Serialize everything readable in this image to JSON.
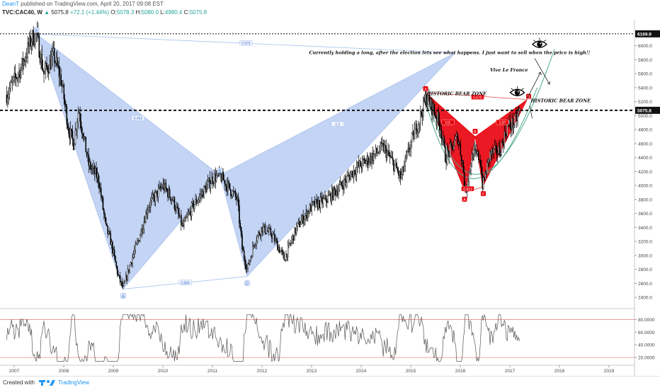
{
  "header": {
    "author": "DeanT",
    "published": "published on TradingView.com, April 20, 2017 09:08 EST",
    "symbol": "TVC:CAC40, W",
    "last": "5075.8",
    "change": "+72.1 (+1.44%)",
    "open_label": "O:",
    "open": "5078.3",
    "high_label": "H:",
    "high": "5080.0",
    "low_label": "L:",
    "low": "4980.4",
    "close_label": "C:",
    "close": "5075.8"
  },
  "footer": {
    "created_with": "Created with",
    "brand": "TradingView"
  },
  "colors": {
    "blue_pattern": "#b9cdf2",
    "red_pattern": "#e8000b",
    "candle": "#000000",
    "rsi_line": "#555555",
    "accent": "#2196f3",
    "green_arc": "#4fa88c"
  },
  "chart_data": [
    {
      "type": "candlestick",
      "interval": "W",
      "ylim": [
        2250,
        6350
      ],
      "y_ticks": [
        2400,
        2600,
        2800,
        3000,
        3200,
        3400,
        3600,
        3800,
        4000,
        4200,
        4400,
        4600,
        4800,
        5000,
        5200,
        5400,
        5600,
        5800,
        6000
      ],
      "y_tick_labels": [
        "2400.0",
        "2600.0",
        "2800.0",
        "3000.0",
        "3200.0",
        "3400.0",
        "3600.0",
        "3800.0",
        "4000.0",
        "4200.0",
        "4400.0",
        "4600.0",
        "4800.0",
        "5000.0",
        "5200.0",
        "5400.0",
        "5600.0",
        "5800.0",
        "6000.0"
      ],
      "x_ticks": [
        2007,
        2008,
        2009,
        2010,
        2011,
        2012,
        2013,
        2014,
        2015,
        2016,
        2017,
        2018,
        2019
      ],
      "x_tick_labels": [
        "2007",
        "2008",
        "2009",
        "2010",
        "2011",
        "2012",
        "2013",
        "2014",
        "2015",
        "2016",
        "2017",
        "2018",
        "2019"
      ],
      "xlim": [
        2006.85,
        2019.3
      ],
      "path": [
        [
          2006.85,
          5300
        ],
        [
          2007.0,
          5500
        ],
        [
          2007.15,
          5700
        ],
        [
          2007.35,
          6100
        ],
        [
          2007.45,
          6168
        ],
        [
          2007.6,
          5600
        ],
        [
          2007.8,
          5850
        ],
        [
          2007.95,
          5500
        ],
        [
          2008.1,
          4800
        ],
        [
          2008.2,
          4600
        ],
        [
          2008.3,
          5100
        ],
        [
          2008.5,
          4300
        ],
        [
          2008.7,
          4100
        ],
        [
          2008.85,
          3400
        ],
        [
          2008.95,
          3200
        ],
        [
          2009.1,
          2700
        ],
        [
          2009.2,
          2519
        ],
        [
          2009.35,
          2900
        ],
        [
          2009.5,
          3200
        ],
        [
          2009.7,
          3700
        ],
        [
          2009.9,
          3900
        ],
        [
          2010.0,
          4000
        ],
        [
          2010.2,
          3800
        ],
        [
          2010.4,
          3400
        ],
        [
          2010.6,
          3700
        ],
        [
          2010.8,
          3900
        ],
        [
          2011.0,
          4100
        ],
        [
          2011.15,
          4150
        ],
        [
          2011.3,
          4000
        ],
        [
          2011.5,
          3800
        ],
        [
          2011.6,
          3100
        ],
        [
          2011.7,
          2800
        ],
        [
          2011.85,
          3200
        ],
        [
          2012.0,
          3400
        ],
        [
          2012.2,
          3300
        ],
        [
          2012.45,
          2950
        ],
        [
          2012.7,
          3400
        ],
        [
          2013.0,
          3700
        ],
        [
          2013.3,
          3800
        ],
        [
          2013.6,
          4000
        ],
        [
          2013.9,
          4250
        ],
        [
          2014.2,
          4400
        ],
        [
          2014.45,
          4550
        ],
        [
          2014.7,
          4250
        ],
        [
          2014.8,
          4100
        ],
        [
          2014.9,
          4350
        ],
        [
          2015.0,
          4600
        ],
        [
          2015.2,
          5000
        ],
        [
          2015.3,
          5250
        ],
        [
          2015.45,
          5100
        ],
        [
          2015.6,
          4850
        ],
        [
          2015.7,
          4400
        ],
        [
          2015.8,
          4500
        ],
        [
          2015.95,
          4700
        ],
        [
          2016.05,
          4300
        ],
        [
          2016.1,
          3900
        ],
        [
          2016.25,
          4450
        ],
        [
          2016.4,
          4400
        ],
        [
          2016.45,
          3980
        ],
        [
          2016.6,
          4450
        ],
        [
          2016.8,
          4500
        ],
        [
          2016.95,
          4850
        ],
        [
          2017.1,
          4900
        ],
        [
          2017.2,
          5075.8
        ]
      ],
      "price_label": "5075.8",
      "resistance_label": "6169.9",
      "resistance_level": 6169.9,
      "current_level": 5075.8,
      "blue_pattern": {
        "points": {
          "X": [
            2007.45,
            6168
          ],
          "A": [
            2009.2,
            2519
          ],
          "B": [
            2011.15,
            4150
          ],
          "C": [
            2011.7,
            2700
          ],
          "D": [
            2015.9,
            5900
          ]
        },
        "letters": [
          "X",
          "A",
          "B",
          "C"
        ],
        "ratios": [
          "0.975",
          "0.455",
          "0.886",
          "2.2"
        ]
      },
      "red_pattern": {
        "points": {
          "X": [
            2015.3,
            5330
          ],
          "A": [
            2016.1,
            3900
          ],
          "B": [
            2016.3,
            4700
          ],
          "C": [
            2016.45,
            3980
          ],
          "D": [
            2017.35,
            5230
          ]
        },
        "letters": [
          "X",
          "A",
          "B",
          "C",
          "D"
        ],
        "ratios": [
          "0.575",
          "0.5",
          "0.913",
          "1.97"
        ]
      },
      "annotations": {
        "holding": "Currently holding a long, after the election lets see what happens. I just want to sell when the price is high!!",
        "vive": "Vive Le France",
        "bear1": "HISTORIC BEAR ZONE",
        "bear2": "HISTORIC BEAR ZONE"
      }
    },
    {
      "type": "line",
      "indicator": "RSI",
      "ylim": [
        10,
        95
      ],
      "y_ticks": [
        20,
        40,
        60,
        80
      ],
      "y_tick_labels": [
        "20.0000",
        "40.0000",
        "60.0000",
        "80.0000"
      ],
      "bands": [
        80,
        20
      ]
    }
  ]
}
